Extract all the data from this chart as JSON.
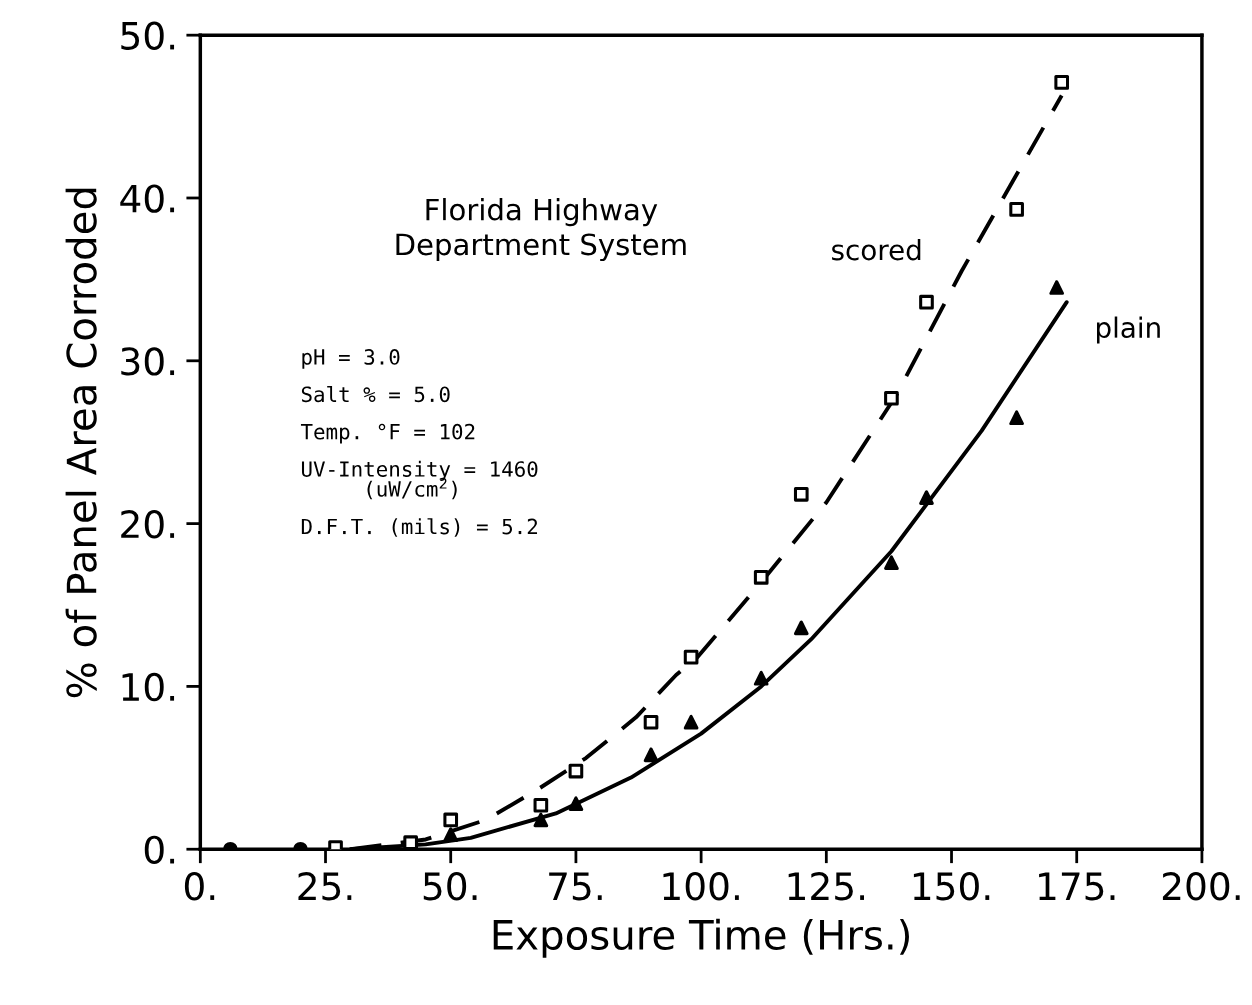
{
  "chart_data": {
    "type": "scatter",
    "xlabel": "Exposure Time (Hrs.)",
    "ylabel": "% of Panel Area Corroded",
    "xlim": [
      0,
      200
    ],
    "ylim": [
      0,
      50
    ],
    "xticks": [
      {
        "value": 0,
        "label": "0."
      },
      {
        "value": 25,
        "label": "25."
      },
      {
        "value": 50,
        "label": "50."
      },
      {
        "value": 75,
        "label": "75."
      },
      {
        "value": 100,
        "label": "100."
      },
      {
        "value": 125,
        "label": "125."
      },
      {
        "value": 150,
        "label": "150."
      },
      {
        "value": 175,
        "label": "175."
      },
      {
        "value": 200,
        "label": "200."
      }
    ],
    "yticks": [
      {
        "value": 0,
        "label": "0."
      },
      {
        "value": 10,
        "label": "10."
      },
      {
        "value": 20,
        "label": "20."
      },
      {
        "value": 30,
        "label": "30."
      },
      {
        "value": 40,
        "label": "40."
      },
      {
        "value": 50,
        "label": "50."
      }
    ],
    "grid": false,
    "legend": false,
    "series": [
      {
        "marker": "circle",
        "color": "#000000",
        "x": [
          6,
          20
        ],
        "values": [
          0,
          0
        ]
      },
      {
        "marker": "square",
        "color": "#000000",
        "x": [
          27,
          42,
          50,
          68,
          75,
          90,
          98,
          112,
          120,
          138,
          145,
          163,
          172
        ],
        "values": [
          0.1,
          0.4,
          1.8,
          2.7,
          4.8,
          7.8,
          11.8,
          16.7,
          21.8,
          27.7,
          33.6,
          39.3,
          47.1
        ]
      },
      {
        "marker": "triangle",
        "color": "#000000",
        "x": [
          50,
          68,
          75,
          90,
          98,
          112,
          120,
          138,
          145,
          163,
          171
        ],
        "values": [
          0.9,
          1.8,
          2.8,
          5.8,
          7.8,
          10.5,
          13.6,
          17.6,
          21.6,
          26.5,
          34.5
        ]
      },
      {
        "type": "line",
        "name": "scored",
        "line_style": "dashed",
        "marker": "none",
        "color": "#000000",
        "x": [
          30,
          45,
          57,
          67,
          77,
          87,
          95,
          99,
          112,
          125,
          139,
          152,
          162,
          172
        ],
        "values": [
          0,
          0.6,
          1.8,
          3.6,
          5.6,
          8.1,
          10.7,
          11.7,
          16.4,
          21.3,
          27.9,
          35.5,
          40.9,
          46.3
        ]
      },
      {
        "type": "line",
        "name": "plain",
        "line_style": "solid",
        "marker": "none",
        "color": "#000000",
        "x": [
          30,
          45,
          54,
          71,
          86,
          100,
          112,
          122,
          138,
          156,
          173
        ],
        "values": [
          0,
          0.3,
          0.7,
          2.2,
          4.4,
          7.1,
          10,
          12.9,
          18.3,
          25.7,
          33.6
        ]
      }
    ],
    "annotations": [
      "Florida Highway\nDepartment System",
      "pH = 3.0\n\nSalt % = 5.0\n\nTemp. °F = 102\n\nUV-Intensity = 1460\n     (uW/cm$^{2}$)\n\nD.F.T. (mils) = 5.2"
    ]
  }
}
